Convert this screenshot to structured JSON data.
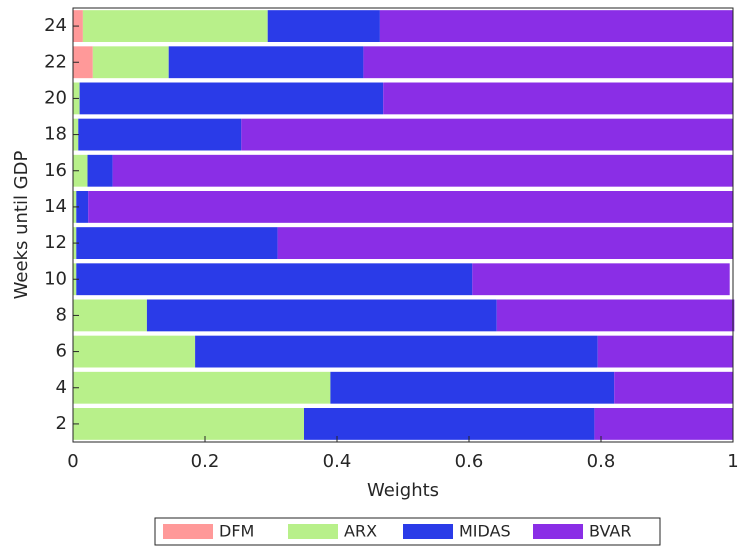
{
  "chart_data": {
    "type": "stacked-barh",
    "xlabel": "Weights",
    "ylabel": "Weeks until GDP",
    "categories": [
      2,
      4,
      6,
      8,
      10,
      12,
      14,
      16,
      18,
      20,
      22,
      24
    ],
    "series": [
      {
        "name": "DFM",
        "color": "#ff9999",
        "values": [
          0,
          0,
          0,
          0,
          0,
          0,
          0,
          0,
          0,
          0,
          0.03,
          0.015
        ]
      },
      {
        "name": "ARX",
        "color": "#b8f08a",
        "values": [
          0.35,
          0.39,
          0.185,
          0.112,
          0.005,
          0.005,
          0.005,
          0.022,
          0.008,
          0.01,
          0.115,
          0.28
        ]
      },
      {
        "name": "MIDAS",
        "color": "#2a3be8",
        "values": [
          0.44,
          0.43,
          0.61,
          0.53,
          0.6,
          0.305,
          0.018,
          0.038,
          0.247,
          0.46,
          0.295,
          0.17
        ]
      },
      {
        "name": "BVAR",
        "color": "#8a2ee6",
        "values": [
          0.21,
          0.18,
          0.205,
          0.36,
          0.39,
          0.69,
          0.977,
          0.94,
          0.745,
          0.53,
          0.56,
          0.535
        ]
      }
    ],
    "xlim": [
      0,
      1
    ],
    "xticks": [
      0,
      0.2,
      0.4,
      0.6,
      0.8,
      1
    ],
    "legend": "bottom"
  }
}
